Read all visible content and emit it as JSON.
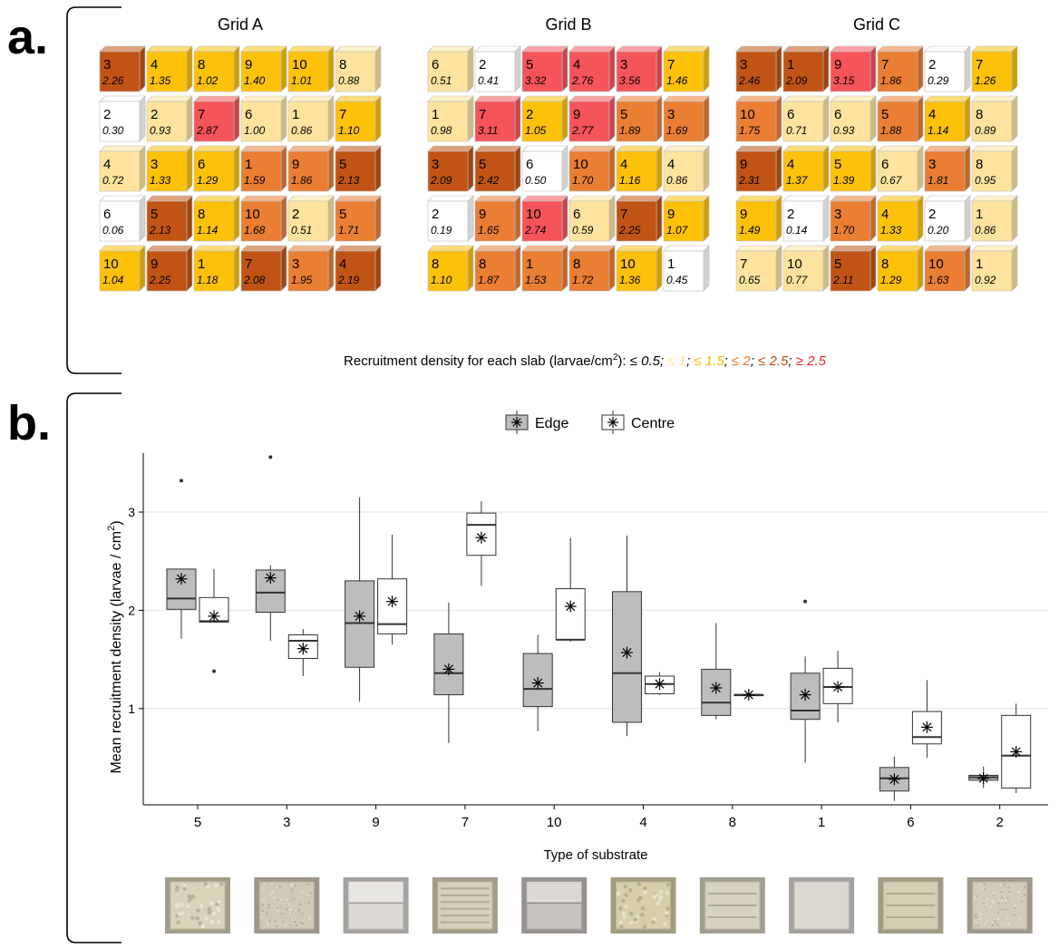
{
  "panels": {
    "a": "a.",
    "b": "b."
  },
  "grids": [
    {
      "title": "Grid A",
      "rows": [
        [
          [
            3,
            "2.26"
          ],
          [
            4,
            "1.35"
          ],
          [
            8,
            "1.02"
          ],
          [
            9,
            "1.40"
          ],
          [
            10,
            "1.01"
          ],
          [
            8,
            "0.88"
          ]
        ],
        [
          [
            2,
            "0.30"
          ],
          [
            2,
            "0.93"
          ],
          [
            7,
            "2.87"
          ],
          [
            6,
            "1.00"
          ],
          [
            1,
            "0.86"
          ],
          [
            7,
            "1.10"
          ]
        ],
        [
          [
            4,
            "0.72"
          ],
          [
            3,
            "1.33"
          ],
          [
            6,
            "1.29"
          ],
          [
            1,
            "1.59"
          ],
          [
            9,
            "1.86"
          ],
          [
            5,
            "2.13"
          ]
        ],
        [
          [
            6,
            "0.06"
          ],
          [
            5,
            "2.13"
          ],
          [
            8,
            "1.14"
          ],
          [
            10,
            "1.68"
          ],
          [
            2,
            "0.51"
          ],
          [
            5,
            "1.71"
          ]
        ],
        [
          [
            10,
            "1.04"
          ],
          [
            9,
            "2.25"
          ],
          [
            1,
            "1.18"
          ],
          [
            7,
            "2.08"
          ],
          [
            3,
            "1.95"
          ],
          [
            4,
            "2.19"
          ]
        ]
      ]
    },
    {
      "title": "Grid B",
      "rows": [
        [
          [
            6,
            "0.51"
          ],
          [
            2,
            "0.41"
          ],
          [
            5,
            "3.32"
          ],
          [
            4,
            "2.76"
          ],
          [
            3,
            "3.56"
          ],
          [
            7,
            "1.46"
          ]
        ],
        [
          [
            1,
            "0.98"
          ],
          [
            7,
            "3.11"
          ],
          [
            2,
            "1.05"
          ],
          [
            9,
            "2.77"
          ],
          [
            5,
            "1.89"
          ],
          [
            3,
            "1.69"
          ]
        ],
        [
          [
            3,
            "2.09"
          ],
          [
            5,
            "2.42"
          ],
          [
            6,
            "0.50"
          ],
          [
            10,
            "1.70"
          ],
          [
            4,
            "1.16"
          ],
          [
            4,
            "0.86"
          ]
        ],
        [
          [
            2,
            "0.19"
          ],
          [
            9,
            "1.65"
          ],
          [
            10,
            "2.74"
          ],
          [
            6,
            "0.59"
          ],
          [
            7,
            "2.25"
          ],
          [
            9,
            "1.07"
          ]
        ],
        [
          [
            8,
            "1.10"
          ],
          [
            8,
            "1.87"
          ],
          [
            1,
            "1.53"
          ],
          [
            8,
            "1.72"
          ],
          [
            10,
            "1.36"
          ],
          [
            1,
            "0.45"
          ]
        ]
      ]
    },
    {
      "title": "Grid C",
      "rows": [
        [
          [
            3,
            "2.46"
          ],
          [
            1,
            "2.09"
          ],
          [
            9,
            "3.15"
          ],
          [
            7,
            "1.86"
          ],
          [
            2,
            "0.29"
          ],
          [
            7,
            "1.26"
          ]
        ],
        [
          [
            10,
            "1.75"
          ],
          [
            6,
            "0.71"
          ],
          [
            6,
            "0.93"
          ],
          [
            5,
            "1.88"
          ],
          [
            4,
            "1.14"
          ],
          [
            8,
            "0.89"
          ]
        ],
        [
          [
            9,
            "2.31"
          ],
          [
            4,
            "1.37"
          ],
          [
            5,
            "1.39"
          ],
          [
            6,
            "0.67"
          ],
          [
            3,
            "1.81"
          ],
          [
            8,
            "0.95"
          ]
        ],
        [
          [
            9,
            "1.49"
          ],
          [
            2,
            "0.14"
          ],
          [
            3,
            "1.70"
          ],
          [
            4,
            "1.33"
          ],
          [
            2,
            "0.20"
          ],
          [
            1,
            "0.86"
          ]
        ],
        [
          [
            7,
            "0.65"
          ],
          [
            10,
            "0.77"
          ],
          [
            5,
            "2.11"
          ],
          [
            8,
            "1.29"
          ],
          [
            10,
            "1.63"
          ],
          [
            1,
            "0.92"
          ]
        ]
      ]
    }
  ],
  "density_legend": {
    "prefix": "Recruitment density for each slab (larvae/cm",
    "sup": "2",
    "suffix": "): ",
    "items": [
      {
        "text": "≤ 0.5;",
        "color": "#000000"
      },
      {
        "text": " ≤ 1",
        "color": "#ffe49a"
      },
      {
        "text": "; ",
        "color": "#000000"
      },
      {
        "text": "≤ 1.5",
        "color": "#f5b800"
      },
      {
        "text": "; ",
        "color": "#000000"
      },
      {
        "text": "≤ 2",
        "color": "#e87a2c"
      },
      {
        "text": "; ",
        "color": "#000000"
      },
      {
        "text": "≤ 2.5",
        "color": "#b8500e"
      },
      {
        "text": "; ",
        "color": "#000000"
      },
      {
        "text": "≥ 2.5",
        "color": "#e8242a"
      }
    ]
  },
  "density_colors": [
    "#ffffff",
    "#fde39d",
    "#fdc10a",
    "#ea7e33",
    "#c15414",
    "#f5545a"
  ],
  "chart_data": {
    "type": "box",
    "xlabel": "Type of substrate",
    "ylabel": "Mean recruitment density (larvae / cm",
    "ylabel_sup": "2",
    "ylabel_end": ")",
    "ylim": [
      0.02,
      3.6
    ],
    "yticks": [
      1,
      2,
      3
    ],
    "grid": true,
    "legend_position": "top",
    "series_names": [
      "Edge",
      "Centre"
    ],
    "series_colors": [
      "#bdbdbd",
      "#ffffff"
    ],
    "categories": [
      "5",
      "3",
      "9",
      "7",
      "10",
      "4",
      "8",
      "1",
      "6",
      "2"
    ],
    "boxes": [
      {
        "category": "5",
        "series": "Edge",
        "min": 1.71,
        "q1": 2.01,
        "median": 2.12,
        "q3": 2.42,
        "max": 2.42,
        "mean": 2.32,
        "outliers": [
          3.32
        ]
      },
      {
        "category": "5",
        "series": "Centre",
        "min": 1.88,
        "q1": 1.88,
        "median": 1.89,
        "q3": 2.13,
        "max": 2.42,
        "mean": 1.94,
        "outliers": [
          1.38
        ]
      },
      {
        "category": "3",
        "series": "Edge",
        "min": 1.69,
        "q1": 1.98,
        "median": 2.18,
        "q3": 2.41,
        "max": 2.46,
        "mean": 2.33,
        "outliers": [
          3.56
        ]
      },
      {
        "category": "3",
        "series": "Centre",
        "min": 1.33,
        "q1": 1.51,
        "median": 1.69,
        "q3": 1.75,
        "max": 1.81,
        "mean": 1.61,
        "outliers": []
      },
      {
        "category": "9",
        "series": "Edge",
        "min": 1.07,
        "q1": 1.42,
        "median": 1.87,
        "q3": 2.3,
        "max": 3.15,
        "mean": 1.94,
        "outliers": []
      },
      {
        "category": "9",
        "series": "Centre",
        "min": 1.65,
        "q1": 1.76,
        "median": 1.86,
        "q3": 2.32,
        "max": 2.77,
        "mean": 2.09,
        "outliers": []
      },
      {
        "category": "7",
        "series": "Edge",
        "min": 0.65,
        "q1": 1.14,
        "median": 1.36,
        "q3": 1.76,
        "max": 2.08,
        "mean": 1.4,
        "outliers": []
      },
      {
        "category": "7",
        "series": "Centre",
        "min": 2.25,
        "q1": 2.56,
        "median": 2.87,
        "q3": 2.99,
        "max": 3.11,
        "mean": 2.74,
        "outliers": []
      },
      {
        "category": "10",
        "series": "Edge",
        "min": 0.77,
        "q1": 1.02,
        "median": 1.2,
        "q3": 1.56,
        "max": 1.75,
        "mean": 1.26,
        "outliers": []
      },
      {
        "category": "10",
        "series": "Centre",
        "min": 1.68,
        "q1": 1.7,
        "median": 1.7,
        "q3": 2.22,
        "max": 2.74,
        "mean": 2.04,
        "outliers": []
      },
      {
        "category": "4",
        "series": "Edge",
        "min": 0.72,
        "q1": 0.86,
        "median": 1.36,
        "q3": 2.19,
        "max": 2.76,
        "mean": 1.57,
        "outliers": []
      },
      {
        "category": "4",
        "series": "Centre",
        "min": 1.14,
        "q1": 1.15,
        "median": 1.25,
        "q3": 1.33,
        "max": 1.37,
        "mean": 1.25,
        "outliers": []
      },
      {
        "category": "8",
        "series": "Edge",
        "min": 0.89,
        "q1": 0.93,
        "median": 1.06,
        "q3": 1.4,
        "max": 1.87,
        "mean": 1.21,
        "outliers": []
      },
      {
        "category": "8",
        "series": "Centre",
        "min": 1.14,
        "q1": 1.14,
        "median": 1.14,
        "q3": 1.14,
        "max": 1.14,
        "mean": 1.14,
        "outliers": []
      },
      {
        "category": "1",
        "series": "Edge",
        "min": 0.45,
        "q1": 0.89,
        "median": 0.98,
        "q3": 1.36,
        "max": 1.53,
        "mean": 1.14,
        "outliers": [
          2.09
        ]
      },
      {
        "category": "1",
        "series": "Centre",
        "min": 0.86,
        "q1": 1.05,
        "median": 1.22,
        "q3": 1.41,
        "max": 1.59,
        "mean": 1.22,
        "outliers": []
      },
      {
        "category": "6",
        "series": "Edge",
        "min": 0.06,
        "q1": 0.16,
        "median": 0.29,
        "q3": 0.4,
        "max": 0.51,
        "mean": 0.28,
        "outliers": []
      },
      {
        "category": "6",
        "series": "Centre",
        "min": 0.5,
        "q1": 0.64,
        "median": 0.71,
        "q3": 0.97,
        "max": 1.29,
        "mean": 0.81,
        "outliers": []
      },
      {
        "category": "2",
        "series": "Edge",
        "min": 0.19,
        "q1": 0.27,
        "median": 0.3,
        "q3": 0.32,
        "max": 0.41,
        "mean": 0.29,
        "outliers": []
      },
      {
        "category": "2",
        "series": "Centre",
        "min": 0.14,
        "q1": 0.19,
        "median": 0.52,
        "q3": 0.93,
        "max": 1.05,
        "mean": 0.56,
        "outliers": []
      }
    ]
  },
  "substrate_photos": [
    {
      "category": "5",
      "base": "#d9d3b9",
      "texture": "rough"
    },
    {
      "category": "3",
      "base": "#d0c9b5",
      "texture": "speckled"
    },
    {
      "category": "9",
      "base": "#dcd8d4",
      "texture": "stepped"
    },
    {
      "category": "7",
      "base": "#d8d0b8",
      "texture": "ridged"
    },
    {
      "category": "10",
      "base": "#c9c3c0",
      "texture": "stepped"
    },
    {
      "category": "4",
      "base": "#d6cfaa",
      "texture": "rough"
    },
    {
      "category": "8",
      "base": "#d7d2be",
      "texture": "grooved"
    },
    {
      "category": "1",
      "base": "#dcd8d2",
      "texture": "smooth"
    },
    {
      "category": "6",
      "base": "#d4cfb2",
      "texture": "grooved"
    },
    {
      "category": "2",
      "base": "#d3cbb9",
      "texture": "speckled"
    }
  ]
}
